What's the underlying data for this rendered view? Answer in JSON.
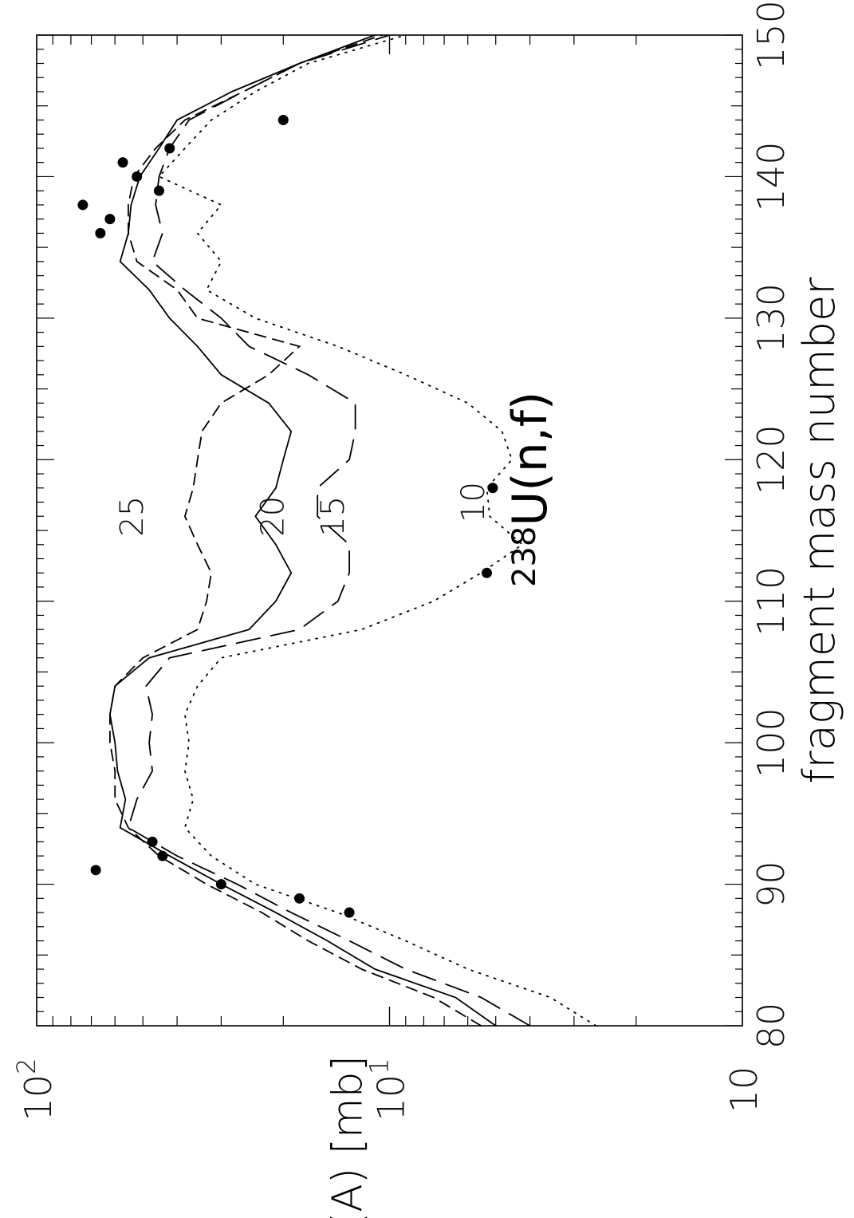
{
  "chart_data": {
    "type": "line",
    "orientation": "rotated 90deg counter-clockwise",
    "annotation": {
      "superscript": "238",
      "text": "U(n,f)"
    },
    "xlabel": "fragment mass number",
    "ylabel": "σ(A)  [mb]",
    "xlim": [
      80,
      150
    ],
    "ylim": [
      1,
      100
    ],
    "yscale": "log",
    "x_ticks": [
      "80",
      "90",
      "100",
      "110",
      "120",
      "130",
      "140",
      "150"
    ],
    "y_ticks": [
      {
        "value": 1,
        "base": "10",
        "exp": ""
      },
      {
        "value": 10,
        "base": "10",
        "exp": "1"
      },
      {
        "value": 100,
        "base": "10",
        "exp": "2"
      }
    ],
    "grid": false,
    "series": [
      {
        "name": "25",
        "style": "short-dash",
        "label_at": [
          116,
          50
        ],
        "x": [
          80,
          82,
          84,
          86,
          88,
          90,
          92,
          94,
          96,
          98,
          100,
          102,
          104,
          106,
          108,
          110,
          112,
          114,
          116,
          118,
          120,
          122,
          124,
          126,
          128,
          130,
          132,
          134,
          136,
          138,
          140,
          142,
          144,
          146,
          148,
          150
        ],
        "y": [
          5.5,
          7.5,
          12,
          17,
          23,
          33,
          45,
          55,
          60,
          60,
          62,
          62,
          60,
          50,
          35,
          33,
          32,
          35,
          38,
          36,
          35,
          34,
          30,
          22,
          18,
          35,
          40,
          52,
          55,
          55,
          53,
          46,
          38,
          26,
          18,
          10.5
        ]
      },
      {
        "name": "20",
        "style": "solid",
        "label_at": [
          116,
          20
        ],
        "x": [
          80,
          82,
          84,
          86,
          88,
          90,
          92,
          94,
          96,
          98,
          100,
          102,
          104,
          106,
          108,
          110,
          112,
          114,
          116,
          118,
          120,
          122,
          124,
          126,
          128,
          130,
          132,
          134,
          136,
          138,
          140,
          142,
          144,
          146,
          148,
          150
        ],
        "y": [
          5,
          6.5,
          11,
          15,
          21,
          30,
          42,
          58,
          56,
          59,
          60,
          62,
          60,
          48,
          25,
          21,
          19,
          21,
          24,
          21,
          20,
          19,
          22,
          30,
          35,
          42,
          48,
          58,
          55,
          54,
          51,
          45,
          40,
          28,
          18,
          11
        ]
      },
      {
        "name": "15",
        "style": "long-dash",
        "label_at": [
          116,
          13.5
        ],
        "x": [
          80,
          82,
          84,
          86,
          88,
          90,
          92,
          94,
          96,
          98,
          100,
          102,
          104,
          106,
          108,
          110,
          112,
          114,
          116,
          118,
          120,
          122,
          124,
          126,
          128,
          130,
          132,
          134,
          136,
          138,
          140,
          142,
          144,
          146,
          148,
          150
        ],
        "y": [
          4,
          5.5,
          9,
          13,
          19,
          27,
          40,
          55,
          52,
          47,
          48,
          47,
          49,
          42,
          18,
          14,
          13,
          13,
          16,
          16,
          13,
          12.5,
          12.5,
          17,
          25,
          30,
          38,
          47,
          44,
          46,
          45,
          42,
          37,
          26,
          18,
          10
        ]
      },
      {
        "name": "10",
        "style": "dotted",
        "label_at": [
          117,
          5.4
        ],
        "x": [
          80,
          82,
          84,
          86,
          88,
          90,
          92,
          94,
          96,
          98,
          100,
          102,
          104,
          106,
          108,
          110,
          112,
          114,
          116,
          118,
          120,
          122,
          124,
          126,
          128,
          130,
          132,
          134,
          136,
          138,
          140,
          142,
          144,
          146,
          148,
          150
        ],
        "y": [
          2.6,
          3.5,
          6,
          9,
          14,
          24,
          32,
          38,
          36,
          38,
          37,
          38,
          35,
          30,
          12,
          7.5,
          5.5,
          4.2,
          5.2,
          5.3,
          4.5,
          4.8,
          6,
          9,
          14,
          24,
          33,
          30,
          35,
          30,
          45,
          38,
          32,
          24,
          17,
          9
        ]
      }
    ],
    "points": {
      "style": "filled-circle",
      "x": [
        88,
        89,
        90,
        91,
        92,
        93,
        112,
        118,
        136,
        137,
        138,
        139,
        140,
        141,
        142,
        144
      ],
      "y": [
        13,
        18,
        30,
        68,
        44,
        47,
        5.3,
        5.1,
        66,
        62,
        74,
        45,
        52,
        57,
        42,
        20
      ]
    }
  }
}
